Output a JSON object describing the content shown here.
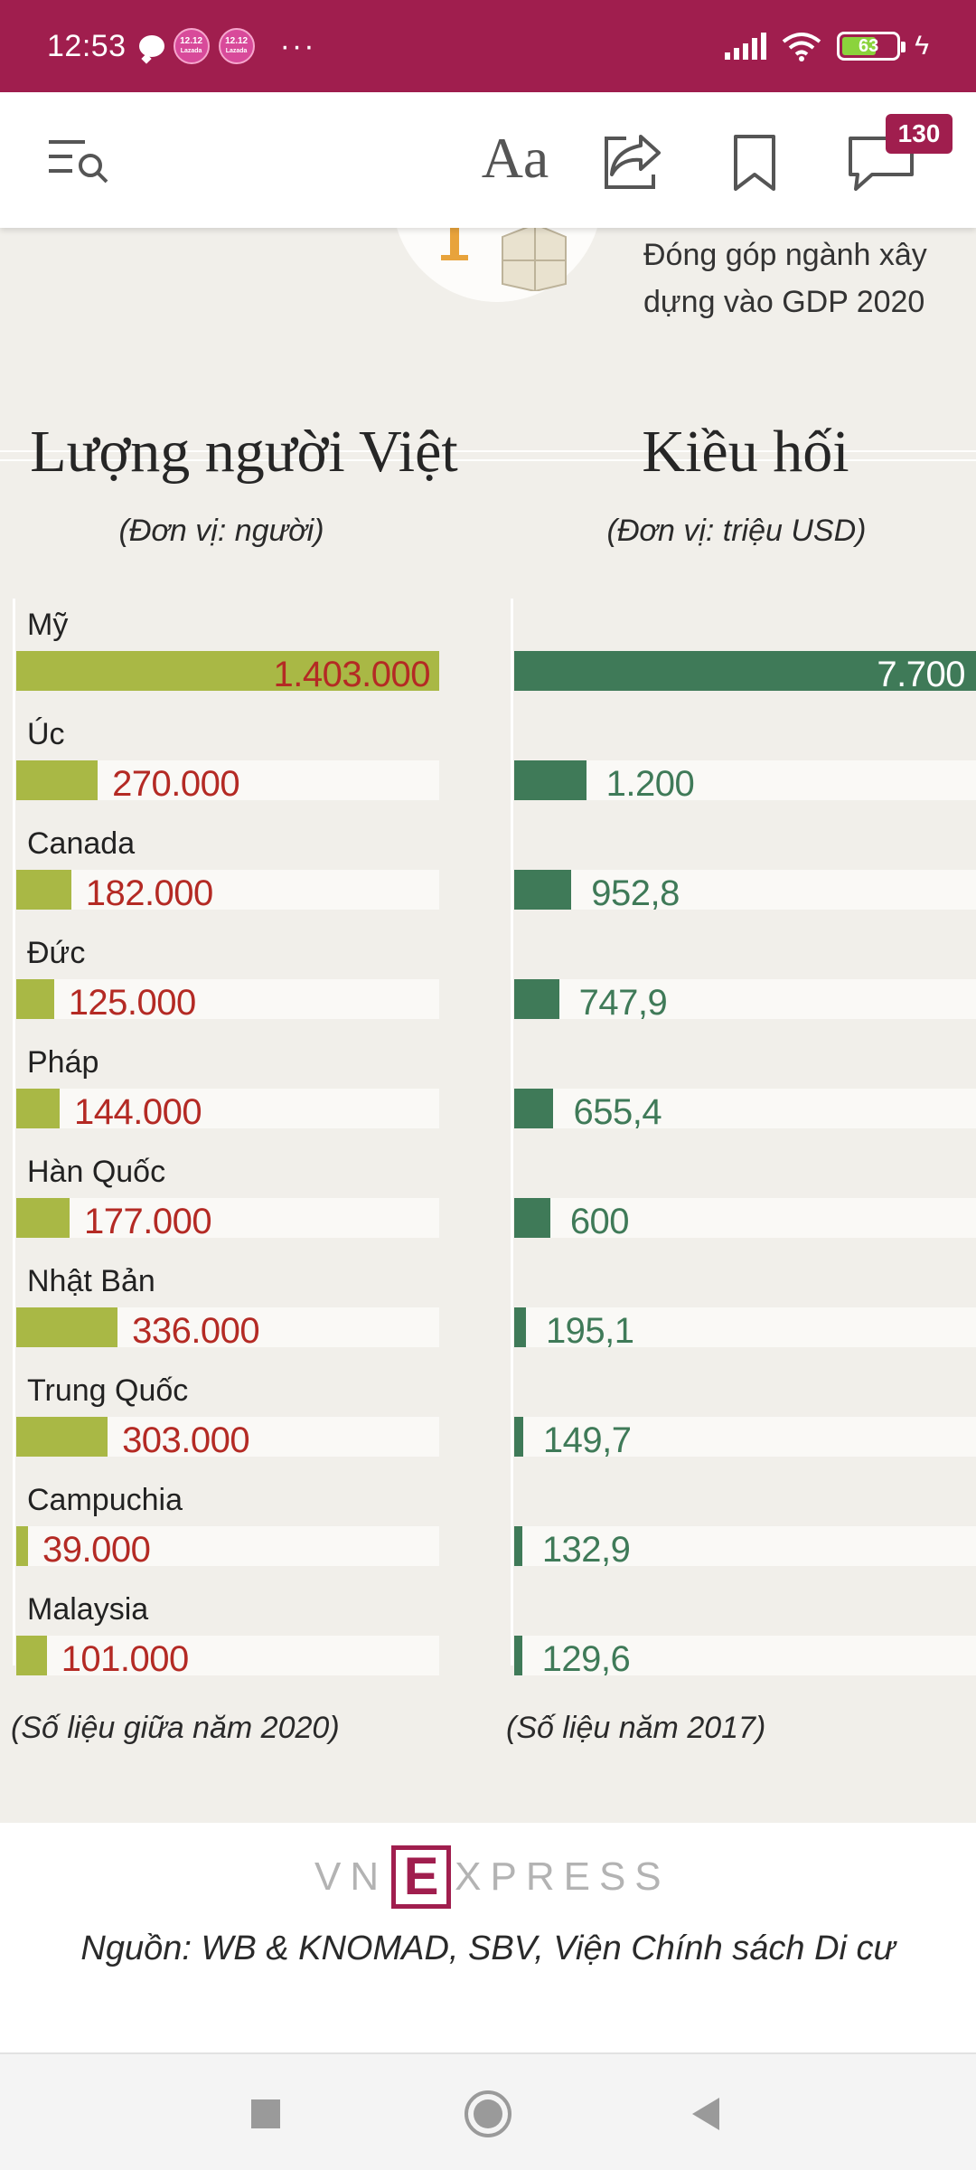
{
  "status_bar": {
    "time": "12:53",
    "promo_badge": "12.12",
    "promo_sub": "Lazada",
    "battery": "63",
    "colors": {
      "background": "#a01e4e"
    }
  },
  "toolbar": {
    "font_label": "Aa",
    "comment_count": "130"
  },
  "article": {
    "gdp_caption": "Đóng góp ngành xây dựng vào GDP 2020",
    "left": {
      "title": "Lượng người Việt",
      "unit": "(Đơn vị: người)",
      "footnote": "(Số liệu giữa năm 2020)"
    },
    "right": {
      "title": "Kiều hối",
      "unit": "(Đơn vị: triệu USD)",
      "footnote": "(Số liệu năm 2017)"
    }
  },
  "chart_data": [
    {
      "type": "bar",
      "orientation": "horizontal",
      "title": "Lượng người Việt",
      "ylabel": "(Đơn vị: người)",
      "categories": [
        "Mỹ",
        "Úc",
        "Canada",
        "Đức",
        "Pháp",
        "Hàn Quốc",
        "Nhật Bản",
        "Trung Quốc",
        "Campuchia",
        "Malaysia"
      ],
      "values": [
        1403000,
        270000,
        182000,
        125000,
        144000,
        177000,
        336000,
        303000,
        39000,
        101000
      ],
      "labels": [
        "1.403.000",
        "270.000",
        "182.000",
        "125.000",
        "144.000",
        "177.000",
        "336.000",
        "303.000",
        "39.000",
        "101.000"
      ],
      "colors": {
        "bar": "#a9b845",
        "label": "#b42a24"
      }
    },
    {
      "type": "bar",
      "orientation": "horizontal",
      "title": "Kiều hối",
      "ylabel": "(Đơn vị: triệu USD)",
      "categories": [
        "Mỹ",
        "Úc",
        "Canada",
        "Đức",
        "Pháp",
        "Hàn Quốc",
        "Nhật Bản",
        "Trung Quốc",
        "Campuchia",
        "Malaysia"
      ],
      "values": [
        7700,
        1200,
        952.8,
        747.9,
        655.4,
        600,
        195.1,
        149.7,
        132.9,
        129.6
      ],
      "labels": [
        "7.700",
        "1.200",
        "952,8",
        "747,9",
        "655,4",
        "600",
        "195,1",
        "149,7",
        "132,9",
        "129,6"
      ],
      "colors": {
        "bar": "#3f7a58",
        "label": "#3f7a58"
      }
    }
  ],
  "source": {
    "logo_left": "VN",
    "logo_e": "E",
    "logo_right": "XPRESS",
    "text": "Nguồn: WB & KNOMAD, SBV, Viện Chính sách Di cư"
  }
}
